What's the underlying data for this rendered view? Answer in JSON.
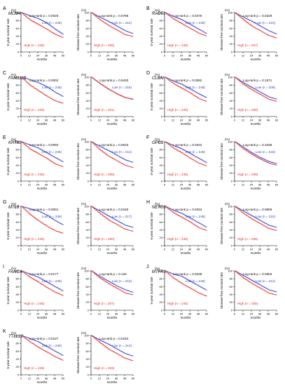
{
  "colors": {
    "high": "#e8281e",
    "low": "#2b3fc7",
    "axis": "#000000"
  },
  "axes": {
    "os_ylabel": "5-year survival rate",
    "dfs_ylabel": "Disease-free survival rate",
    "xlabel": "months",
    "unit": "(%)",
    "xticks": [
      "0",
      "12",
      "24",
      "36",
      "48",
      "60"
    ],
    "yticks": [
      "0",
      "20",
      "40",
      "60",
      "80",
      "100"
    ]
  },
  "chart_data": [
    {
      "panel": "A",
      "gene": "MCM4",
      "kind": "os",
      "type": "line",
      "xlim": [
        0,
        60
      ],
      "ylim": [
        0,
        100
      ],
      "logrank": "Log-rank p = 0.0025",
      "series": [
        {
          "name": "Low (n = 246)",
          "x": [
            0,
            12,
            24,
            36,
            48,
            60
          ],
          "y": [
            100,
            92,
            85,
            74,
            58,
            44
          ]
        },
        {
          "name": "High (n = 246)",
          "x": [
            0,
            12,
            24,
            36,
            48,
            60
          ],
          "y": [
            100,
            82,
            70,
            58,
            45,
            36
          ]
        }
      ]
    },
    {
      "panel": "A",
      "gene": "MCM4",
      "kind": "dfs",
      "type": "line",
      "xlim": [
        0,
        60
      ],
      "ylim": [
        0,
        100
      ],
      "logrank": "Log-rank p = 0.0796",
      "series": [
        {
          "name": "Low (n = 212)",
          "x": [
            0,
            12,
            24,
            36,
            48,
            60
          ],
          "y": [
            100,
            88,
            78,
            66,
            54,
            46
          ]
        },
        {
          "name": "High (n = 205)",
          "x": [
            0,
            12,
            24,
            36,
            48,
            60
          ],
          "y": [
            100,
            82,
            68,
            56,
            44,
            39
          ]
        }
      ]
    },
    {
      "panel": "B",
      "gene": "RAD51",
      "kind": "os",
      "type": "line",
      "xlim": [
        0,
        60
      ],
      "ylim": [
        0,
        100
      ],
      "logrank": "Log-rank p = 0.0478",
      "series": [
        {
          "name": "Low (n = 246)",
          "x": [
            0,
            12,
            24,
            36,
            48,
            60
          ],
          "y": [
            100,
            90,
            82,
            70,
            58,
            46
          ]
        },
        {
          "name": "High (n = 246)",
          "x": [
            0,
            12,
            24,
            36,
            48,
            60
          ],
          "y": [
            100,
            84,
            72,
            60,
            48,
            40
          ]
        }
      ]
    },
    {
      "panel": "B",
      "gene": "RAD51",
      "kind": "dfs",
      "type": "line",
      "xlim": [
        0,
        60
      ],
      "ylim": [
        0,
        100
      ],
      "logrank": "Log-rank p = 0.0329",
      "series": [
        {
          "name": "Low (n = 210)",
          "x": [
            0,
            12,
            24,
            36,
            48,
            60
          ],
          "y": [
            100,
            88,
            78,
            66,
            54,
            45
          ]
        },
        {
          "name": "High (n = 207)",
          "x": [
            0,
            12,
            24,
            36,
            48,
            60
          ],
          "y": [
            100,
            82,
            66,
            54,
            42,
            35
          ]
        }
      ]
    },
    {
      "panel": "C",
      "gene": "FAM111B",
      "kind": "os",
      "type": "line",
      "xlim": [
        0,
        60
      ],
      "ylim": [
        0,
        100
      ],
      "logrank": "Log-rank p = 0.0002",
      "series": [
        {
          "name": "Low (n = 246)",
          "x": [
            0,
            12,
            24,
            36,
            48,
            60
          ],
          "y": [
            100,
            94,
            86,
            76,
            62,
            50
          ]
        },
        {
          "name": "High (n = 246)",
          "x": [
            0,
            12,
            24,
            36,
            48,
            60
          ],
          "y": [
            100,
            80,
            66,
            52,
            40,
            33
          ]
        }
      ]
    },
    {
      "panel": "C",
      "gene": "FAM111B",
      "kind": "dfs",
      "type": "line",
      "xlim": [
        0,
        60
      ],
      "ylim": [
        0,
        100
      ],
      "logrank": "Log-rank p = 0.8433",
      "series": [
        {
          "name": "Low (n = 216)",
          "x": [
            0,
            12,
            24,
            36,
            48,
            60
          ],
          "y": [
            100,
            84,
            70,
            58,
            48,
            44
          ]
        },
        {
          "name": "High (n = 201)",
          "x": [
            0,
            12,
            24,
            36,
            48,
            60
          ],
          "y": [
            100,
            84,
            70,
            58,
            48,
            43
          ]
        }
      ]
    },
    {
      "panel": "D",
      "gene": "CLGN",
      "kind": "os",
      "type": "line",
      "xlim": [
        0,
        60
      ],
      "ylim": [
        0,
        100
      ],
      "logrank": "Log-rank p = 0.0352",
      "series": [
        {
          "name": "Low (n = 246)",
          "x": [
            0,
            12,
            24,
            36,
            48,
            60
          ],
          "y": [
            100,
            90,
            82,
            70,
            58,
            47
          ]
        },
        {
          "name": "High (n = 246)",
          "x": [
            0,
            12,
            24,
            36,
            48,
            60
          ],
          "y": [
            100,
            84,
            72,
            60,
            46,
            38
          ]
        }
      ]
    },
    {
      "panel": "D",
      "gene": "CLGN",
      "kind": "dfs",
      "type": "line",
      "xlim": [
        0,
        60
      ],
      "ylim": [
        0,
        100
      ],
      "logrank": "Log-rank p = 0.1571",
      "series": [
        {
          "name": "Low (n = 209)",
          "x": [
            0,
            12,
            24,
            36,
            48,
            60
          ],
          "y": [
            100,
            86,
            74,
            62,
            50,
            44
          ]
        },
        {
          "name": "High (n = 208)",
          "x": [
            0,
            12,
            24,
            36,
            48,
            60
          ],
          "y": [
            100,
            82,
            68,
            56,
            44,
            38
          ]
        }
      ]
    },
    {
      "panel": "E",
      "gene": "KRT80",
      "kind": "os",
      "type": "line",
      "xlim": [
        0,
        60
      ],
      "ylim": [
        0,
        100
      ],
      "logrank": "Log-rank p = 0.0093",
      "series": [
        {
          "name": "Low (n = 246)",
          "x": [
            0,
            12,
            24,
            36,
            48,
            60
          ],
          "y": [
            100,
            92,
            84,
            72,
            60,
            48
          ]
        },
        {
          "name": "High (n = 246)",
          "x": [
            0,
            12,
            24,
            36,
            48,
            60
          ],
          "y": [
            100,
            82,
            70,
            58,
            44,
            36
          ]
        }
      ]
    },
    {
      "panel": "E",
      "gene": "KRT80",
      "kind": "dfs",
      "type": "line",
      "xlim": [
        0,
        60
      ],
      "ylim": [
        0,
        100
      ],
      "logrank": "Log-rank p = 0.0023",
      "series": [
        {
          "name": "Low (n = 211)",
          "x": [
            0,
            12,
            24,
            36,
            48,
            60
          ],
          "y": [
            100,
            88,
            78,
            66,
            54,
            47
          ]
        },
        {
          "name": "High (n = 206)",
          "x": [
            0,
            12,
            24,
            36,
            48,
            60
          ],
          "y": [
            100,
            80,
            64,
            52,
            40,
            34
          ]
        }
      ]
    },
    {
      "panel": "F",
      "gene": "GPC1",
      "kind": "os",
      "type": "line",
      "xlim": [
        0,
        60
      ],
      "ylim": [
        0,
        100
      ],
      "logrank": "Log-rank p = 0.0322",
      "series": [
        {
          "name": "Low (n = 246)",
          "x": [
            0,
            12,
            24,
            36,
            48,
            60
          ],
          "y": [
            100,
            90,
            82,
            70,
            58,
            46
          ]
        },
        {
          "name": "High (n = 246)",
          "x": [
            0,
            12,
            24,
            36,
            48,
            60
          ],
          "y": [
            100,
            84,
            72,
            58,
            46,
            38
          ]
        }
      ]
    },
    {
      "panel": "F",
      "gene": "GPC1",
      "kind": "dfs",
      "type": "line",
      "xlim": [
        0,
        60
      ],
      "ylim": [
        0,
        100
      ],
      "logrank": "Log-rank p = 0.3338",
      "series": [
        {
          "name": "Low (n = 218)",
          "x": [
            0,
            12,
            24,
            36,
            48,
            60
          ],
          "y": [
            100,
            86,
            72,
            60,
            50,
            44
          ]
        },
        {
          "name": "High (n = 199)",
          "x": [
            0,
            12,
            24,
            36,
            48,
            60
          ],
          "y": [
            100,
            82,
            68,
            56,
            46,
            40
          ]
        }
      ]
    },
    {
      "panel": "G",
      "gene": "MTL5",
      "kind": "os",
      "type": "line",
      "xlim": [
        0,
        60
      ],
      "ylim": [
        0,
        100
      ],
      "logrank": "Log-rank p = 0.0001",
      "series": [
        {
          "name": "Low (n = 246)",
          "x": [
            0,
            12,
            24,
            36,
            48,
            60
          ],
          "y": [
            100,
            94,
            88,
            78,
            64,
            52
          ]
        },
        {
          "name": "High (n = 246)",
          "x": [
            0,
            12,
            24,
            36,
            48,
            60
          ],
          "y": [
            100,
            80,
            64,
            50,
            38,
            31
          ]
        }
      ]
    },
    {
      "panel": "G",
      "gene": "MTL5",
      "kind": "dfs",
      "type": "line",
      "xlim": [
        0,
        60
      ],
      "ylim": [
        0,
        100
      ],
      "logrank": "Log-rank p = 0.0193",
      "series": [
        {
          "name": "Low (n = 217)",
          "x": [
            0,
            12,
            24,
            36,
            48,
            60
          ],
          "y": [
            100,
            88,
            76,
            64,
            52,
            46
          ]
        },
        {
          "name": "High (n = 200)",
          "x": [
            0,
            12,
            24,
            36,
            48,
            60
          ],
          "y": [
            100,
            82,
            66,
            54,
            42,
            36
          ]
        }
      ]
    },
    {
      "panel": "H",
      "gene": "NETO2",
      "kind": "os",
      "type": "line",
      "xlim": [
        0,
        60
      ],
      "ylim": [
        0,
        100
      ],
      "logrank": "Log-rank p = 0.0334",
      "series": [
        {
          "name": "Low (n = 246)",
          "x": [
            0,
            12,
            24,
            36,
            48,
            60
          ],
          "y": [
            100,
            90,
            82,
            70,
            58,
            46
          ]
        },
        {
          "name": "High (n = 246)",
          "x": [
            0,
            12,
            24,
            36,
            48,
            60
          ],
          "y": [
            100,
            84,
            72,
            60,
            46,
            38
          ]
        }
      ]
    },
    {
      "panel": "H",
      "gene": "NETO2",
      "kind": "dfs",
      "type": "line",
      "xlim": [
        0,
        60
      ],
      "ylim": [
        0,
        100
      ],
      "logrank": "Log-rank p = 0.0806",
      "series": [
        {
          "name": "Low (n = 210)",
          "x": [
            0,
            12,
            24,
            36,
            48,
            60
          ],
          "y": [
            100,
            88,
            76,
            64,
            52,
            46
          ]
        },
        {
          "name": "High (n = 206)",
          "x": [
            0,
            12,
            24,
            36,
            48,
            60
          ],
          "y": [
            100,
            82,
            68,
            56,
            44,
            38
          ]
        }
      ]
    },
    {
      "panel": "I",
      "gene": "FANCA",
      "kind": "os",
      "type": "line",
      "xlim": [
        0,
        60
      ],
      "ylim": [
        0,
        100
      ],
      "logrank": "Log-rank p = 0.0177",
      "series": [
        {
          "name": "Low (n = 246)",
          "x": [
            0,
            12,
            24,
            36,
            48,
            60
          ],
          "y": [
            100,
            92,
            84,
            72,
            60,
            48
          ]
        },
        {
          "name": "High (n = 246)",
          "x": [
            0,
            12,
            24,
            36,
            48,
            60
          ],
          "y": [
            100,
            84,
            72,
            58,
            46,
            37
          ]
        }
      ]
    },
    {
      "panel": "I",
      "gene": "FANCA",
      "kind": "dfs",
      "type": "line",
      "xlim": [
        0,
        60
      ],
      "ylim": [
        0,
        100
      ],
      "logrank": "Log-rank p = 0.125",
      "series": [
        {
          "name": "Low (n = 210)",
          "x": [
            0,
            12,
            24,
            36,
            48,
            60
          ],
          "y": [
            100,
            86,
            74,
            62,
            52,
            45
          ]
        },
        {
          "name": "High (n = 207)",
          "x": [
            0,
            12,
            24,
            36,
            48,
            60
          ],
          "y": [
            100,
            82,
            68,
            56,
            44,
            39
          ]
        }
      ]
    },
    {
      "panel": "J",
      "gene": "MTFR1",
      "kind": "os",
      "type": "line",
      "xlim": [
        0,
        60
      ],
      "ylim": [
        0,
        100
      ],
      "logrank": "Log-rank p = 0.0038",
      "series": [
        {
          "name": "Low (n = 246)",
          "x": [
            0,
            12,
            24,
            36,
            48,
            60
          ],
          "y": [
            100,
            92,
            86,
            74,
            62,
            50
          ]
        },
        {
          "name": "High (n = 246)",
          "x": [
            0,
            12,
            24,
            36,
            48,
            60
          ],
          "y": [
            100,
            82,
            68,
            56,
            44,
            35
          ]
        }
      ]
    },
    {
      "panel": "J",
      "gene": "MTFR1",
      "kind": "dfs",
      "type": "line",
      "xlim": [
        0,
        60
      ],
      "ylim": [
        0,
        100
      ],
      "logrank": "Log-rank p = 0.0553",
      "series": [
        {
          "name": "Low (n = 212)",
          "x": [
            0,
            12,
            24,
            36,
            48,
            60
          ],
          "y": [
            100,
            88,
            76,
            64,
            52,
            46
          ]
        },
        {
          "name": "High (n = 205)",
          "x": [
            0,
            12,
            24,
            36,
            48,
            60
          ],
          "y": [
            100,
            82,
            68,
            56,
            44,
            38
          ]
        }
      ]
    },
    {
      "panel": "K",
      "gene": "TTLL12",
      "kind": "os",
      "type": "line",
      "xlim": [
        0,
        60
      ],
      "ylim": [
        0,
        100
      ],
      "logrank": "Log-rank p = 0.0127",
      "series": [
        {
          "name": "Low (n = 246)",
          "x": [
            0,
            12,
            24,
            36,
            48,
            60
          ],
          "y": [
            100,
            92,
            84,
            72,
            60,
            48
          ]
        },
        {
          "name": "High (n = 246)",
          "x": [
            0,
            12,
            24,
            36,
            48,
            60
          ],
          "y": [
            100,
            84,
            70,
            58,
            46,
            36
          ]
        }
      ]
    },
    {
      "panel": "K",
      "gene": "TTLL12",
      "kind": "dfs",
      "type": "line",
      "xlim": [
        0,
        60
      ],
      "ylim": [
        0,
        100
      ],
      "logrank": "Log-rank p = 0.0154",
      "series": [
        {
          "name": "Low (n = 214)",
          "x": [
            0,
            12,
            24,
            36,
            48,
            60
          ],
          "y": [
            100,
            88,
            78,
            66,
            54,
            47
          ]
        },
        {
          "name": "High (n = 203)",
          "x": [
            0,
            12,
            24,
            36,
            48,
            60
          ],
          "y": [
            100,
            82,
            66,
            54,
            42,
            35
          ]
        }
      ]
    }
  ]
}
